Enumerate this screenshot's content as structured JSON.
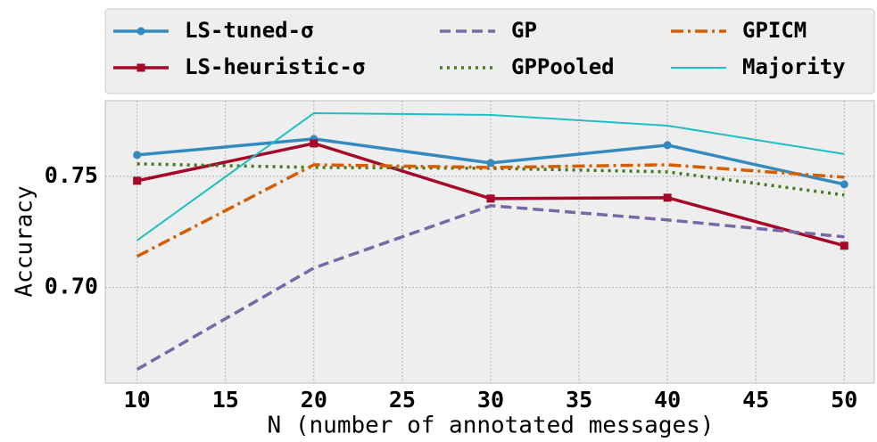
{
  "chart_data": {
    "type": "line",
    "xlabel": "N (number of annotated messages)",
    "ylabel": "Accuracy",
    "x": [
      10,
      20,
      30,
      40,
      50
    ],
    "series": [
      {
        "name": "LS-tuned-σ",
        "color": "#348abd",
        "linestyle": "solid",
        "marker": "circle",
        "values": [
          0.7596,
          0.7668,
          0.756,
          0.764,
          0.7464
        ]
      },
      {
        "name": "LS-heuristic-σ",
        "color": "#a60628",
        "linestyle": "solid",
        "marker": "square",
        "values": [
          0.748,
          0.7648,
          0.74,
          0.7404,
          0.7188
        ]
      },
      {
        "name": "GP",
        "color": "#7a68a6",
        "linestyle": "dashed",
        "values": [
          0.6632,
          0.7088,
          0.7368,
          0.7304,
          0.7228
        ]
      },
      {
        "name": "GPPooled",
        "color": "#467821",
        "linestyle": "dotted",
        "values": [
          0.7556,
          0.754,
          0.7536,
          0.752,
          0.7416
        ]
      },
      {
        "name": "GPICM",
        "color": "#d55e00",
        "linestyle": "dashdot",
        "values": [
          0.714,
          0.7552,
          0.754,
          0.7552,
          0.7496
        ]
      },
      {
        "name": "Majority",
        "color": "#1ebfc4",
        "linestyle": "thin",
        "values": [
          0.7212,
          0.7784,
          0.7776,
          0.7728,
          0.76
        ]
      }
    ],
    "xlim": [
      8.2,
      51.7
    ],
    "xticks": [
      10,
      15,
      20,
      25,
      30,
      35,
      40,
      45,
      50
    ],
    "ylim": [
      0.657,
      0.784
    ],
    "yticks": [
      {
        "value": 0.7,
        "label": "0.70"
      },
      0.75
    ],
    "grid": true,
    "legend": "top"
  }
}
